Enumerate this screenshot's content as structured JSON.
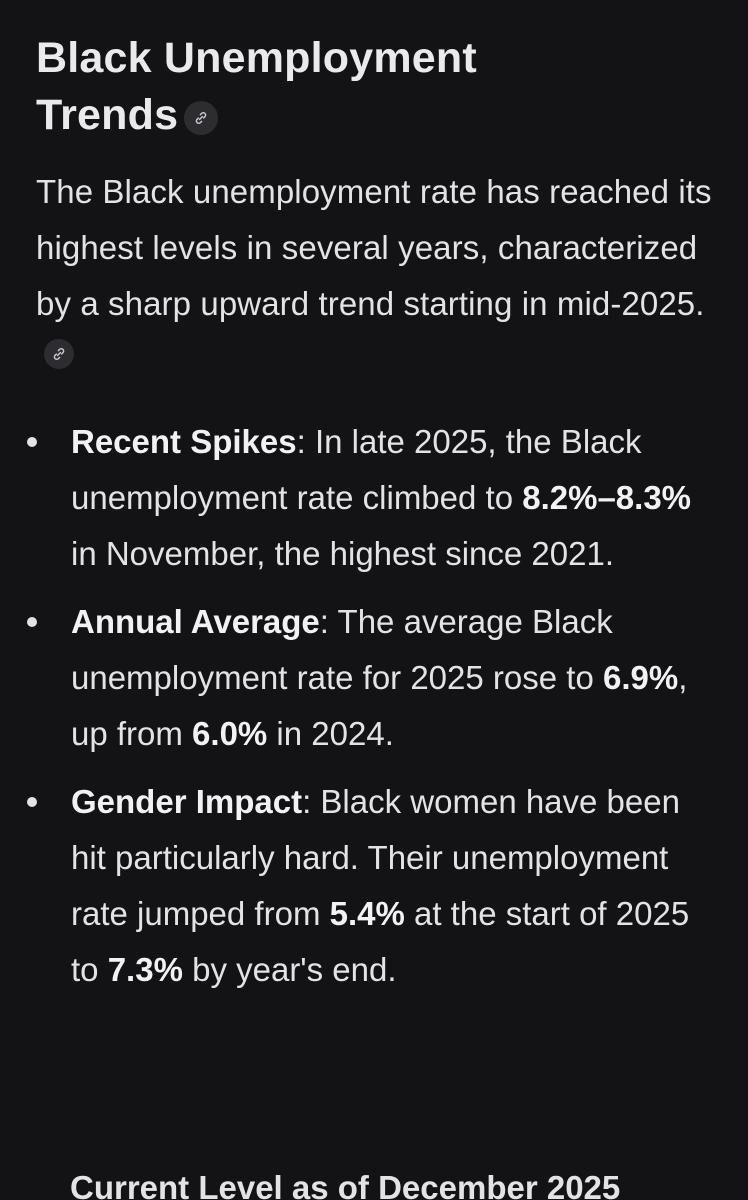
{
  "heading": {
    "line1": "Black Unemployment",
    "line2": "Trends",
    "link_icon": "link-icon"
  },
  "intro": {
    "text": "The Black unemployment rate has reached its highest levels in several years, characterized by a sharp upward trend starting in mid-2025.",
    "link_icon": "link-icon"
  },
  "bullets": [
    {
      "title": "Recent Spikes",
      "sep": ": ",
      "t1": "In late 2025, the Black unemployment rate climbed to ",
      "b1": "8.2%–8.3%",
      "t2": " in November, the highest since 2021."
    },
    {
      "title": "Annual Average",
      "sep": ": ",
      "t1": "The average Black unemployment rate for 2025 rose to ",
      "b1": "6.9%",
      "t2": ", up from ",
      "b2": "6.0%",
      "t3": " in 2024."
    },
    {
      "title": "Gender Impact",
      "sep": ": ",
      "t1": "Black women have been hit particularly hard. Their unemployment rate jumped from ",
      "b1": "5.4%",
      "t2": " at the start of 2025 to ",
      "b2": "7.3%",
      "t3": " by year's end."
    }
  ],
  "cutoff_text": "Current Level as of December 2025"
}
